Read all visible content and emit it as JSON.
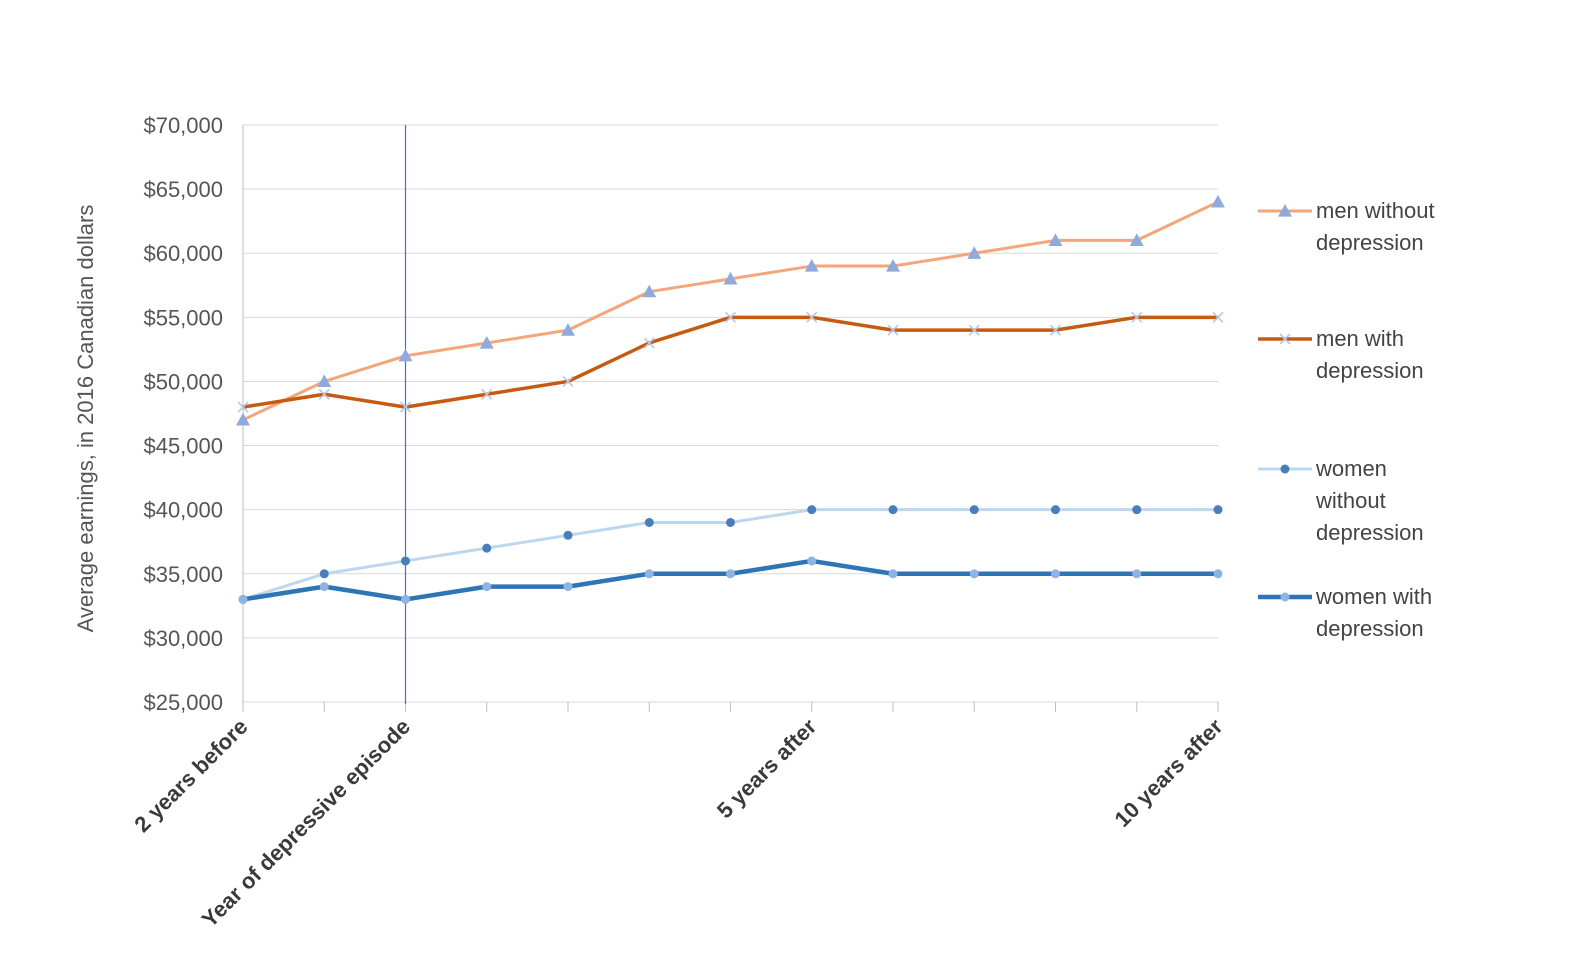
{
  "chart_data": {
    "type": "line",
    "title": "",
    "xlabel": "",
    "ylabel": "Average earnings, in 2016 Canadian dollars",
    "ylim": [
      25000,
      70000
    ],
    "y_ticks": [
      25000,
      30000,
      35000,
      40000,
      45000,
      50000,
      55000,
      60000,
      65000,
      70000
    ],
    "y_tick_labels": [
      "$25,000",
      "$30,000",
      "$35,000",
      "$40,000",
      "$45,000",
      "$50,000",
      "$55,000",
      "$60,000",
      "$65,000",
      "$70,000"
    ],
    "x_count": 13,
    "x_tick_labels": [
      {
        "index": 0,
        "label": "2 years before"
      },
      {
        "index": 2,
        "label": "Year of depressive episode"
      },
      {
        "index": 7,
        "label": "5 years after"
      },
      {
        "index": 12,
        "label": "10 years after"
      }
    ],
    "reference_line_index": 2,
    "grid": true,
    "legend_position": "right",
    "series": [
      {
        "name": "men without depression",
        "legend_lines": [
          "men without",
          "depression"
        ],
        "color": "#f4a67a",
        "marker_color": "#8faadc",
        "marker": "triangle",
        "width": 3,
        "values": [
          47000,
          50000,
          52000,
          53000,
          54000,
          57000,
          58000,
          59000,
          59000,
          60000,
          61000,
          61000,
          64000
        ]
      },
      {
        "name": "men with depression",
        "legend_lines": [
          "men with",
          "depression"
        ],
        "color": "#c55a11",
        "marker_color": "#b4c7e7",
        "marker": "x",
        "width": 3.5,
        "values": [
          48000,
          49000,
          48000,
          49000,
          50000,
          53000,
          55000,
          55000,
          54000,
          54000,
          54000,
          55000,
          55000
        ]
      },
      {
        "name": "women without depression",
        "legend_lines": [
          "women",
          "without",
          "depression"
        ],
        "color": "#bdd7ee",
        "marker_color": "#4a7ebb",
        "marker": "circle",
        "width": 3,
        "values": [
          33000,
          35000,
          36000,
          37000,
          38000,
          39000,
          39000,
          40000,
          40000,
          40000,
          40000,
          40000,
          40000
        ]
      },
      {
        "name": "women with depression",
        "legend_lines": [
          "women with",
          "depression"
        ],
        "color": "#2e75b6",
        "marker_color": "#8fb4e3",
        "marker": "circle",
        "width": 4.5,
        "values": [
          33000,
          34000,
          33000,
          34000,
          34000,
          35000,
          35000,
          36000,
          35000,
          35000,
          35000,
          35000,
          35000
        ]
      }
    ]
  }
}
